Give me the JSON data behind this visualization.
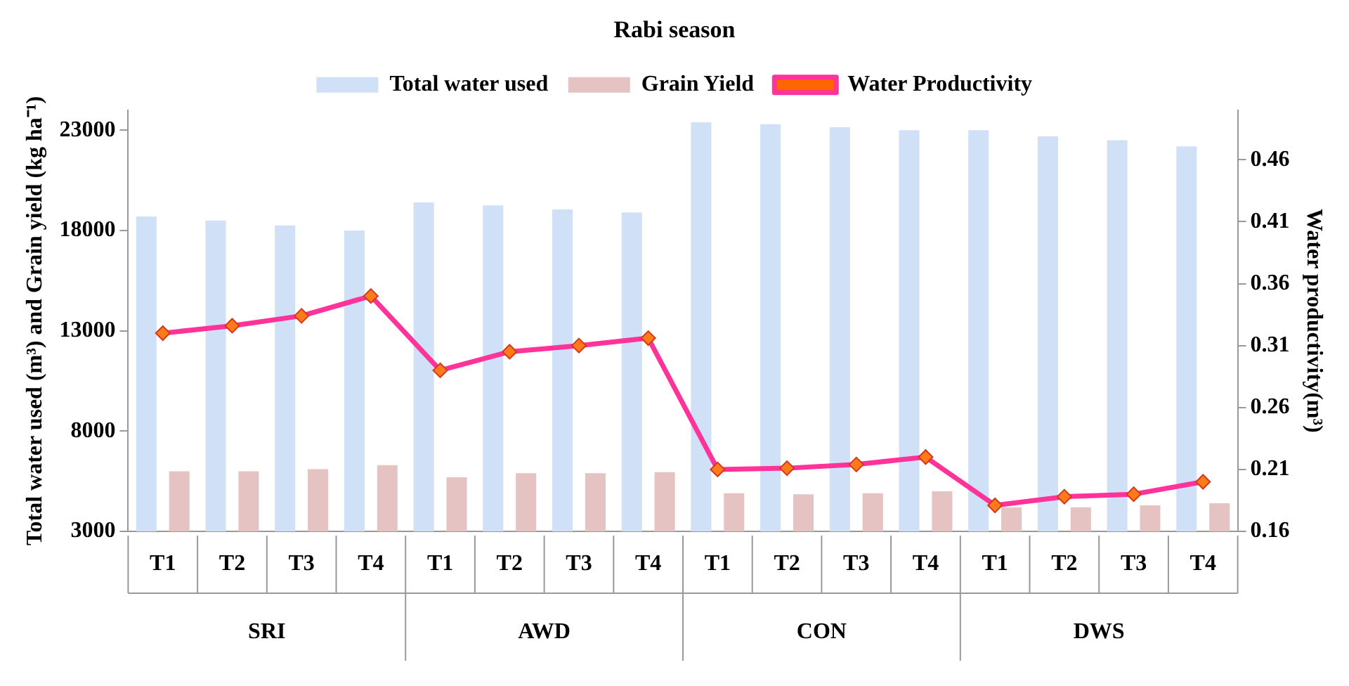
{
  "chart_data": {
    "type": "bar",
    "title": "Rabi season",
    "ylabel": "Total water used (m³) and Grain yield (kg ha⁻¹)",
    "y2label": "Water productivity(m³)",
    "categories": [
      "T1",
      "T2",
      "T3",
      "T4",
      "T1",
      "T2",
      "T3",
      "T4",
      "T1",
      "T2",
      "T3",
      "T4",
      "T1",
      "T2",
      "T3",
      "T4"
    ],
    "annotations": [
      "SRI",
      "AWD",
      "CON",
      "DWS"
    ],
    "series": [
      {
        "name": "Total water used",
        "color": "#cfe0f7",
        "values": [
          18700,
          18500,
          18250,
          18000,
          19400,
          19250,
          19050,
          18900,
          23400,
          23300,
          23150,
          23000,
          23000,
          22700,
          22500,
          22200
        ]
      },
      {
        "name": "Grain Yield",
        "color": "#e6c3c3",
        "values": [
          6000,
          6000,
          6100,
          6300,
          5700,
          5900,
          5900,
          5950,
          4900,
          4850,
          4900,
          5000,
          4200,
          4200,
          4300,
          4400
        ]
      },
      {
        "name": "Water Productivity",
        "type": "line",
        "axis": "y2",
        "color": "#ff3399",
        "marker": "diamond",
        "values": [
          0.32,
          0.326,
          0.334,
          0.35,
          0.29,
          0.305,
          0.31,
          0.316,
          0.21,
          0.211,
          0.214,
          0.22,
          0.181,
          0.188,
          0.19,
          0.2
        ]
      }
    ],
    "ylim": [
      3000,
      24000
    ],
    "yticks": [
      3000,
      8000,
      13000,
      18000,
      23000
    ],
    "y2lim": [
      0.16,
      0.5
    ],
    "y2ticks": [
      0.16,
      0.21,
      0.26,
      0.31,
      0.36,
      0.41,
      0.46
    ],
    "grid": false,
    "legend": "top"
  }
}
